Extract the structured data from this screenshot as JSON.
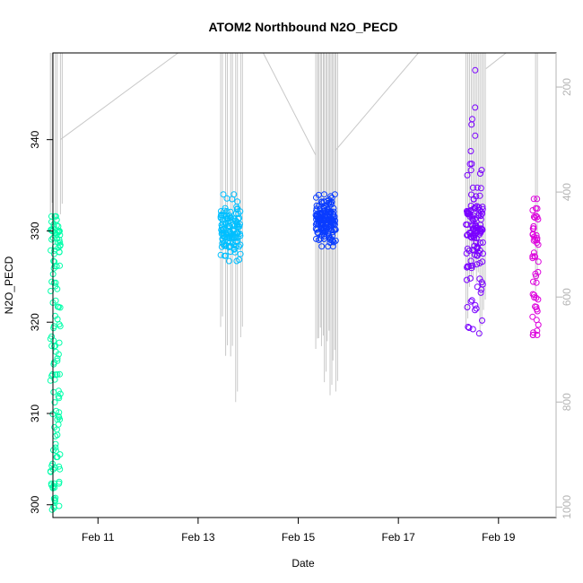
{
  "chart_data": {
    "type": "scatter",
    "title": "ATOM2 Northbound N2O_PECD",
    "xlabel": "Date",
    "ylabel": "N2O_PECD",
    "x_unit": "date (February)",
    "xlim": [
      10.1,
      20.15
    ],
    "ylim": [
      298.6,
      349.5
    ],
    "x_ticks": [
      {
        "value": 11,
        "label": "Feb 11"
      },
      {
        "value": 13,
        "label": "Feb 13"
      },
      {
        "value": 15,
        "label": "Feb 15"
      },
      {
        "value": 17,
        "label": "Feb 17"
      },
      {
        "value": 19,
        "label": "Feb 19"
      }
    ],
    "y_ticks": [
      300,
      310,
      320,
      330,
      340
    ],
    "y2_axis": {
      "quantity": "pressure",
      "ticks": [
        200,
        400,
        600,
        800,
        1000
      ],
      "inverted": true,
      "range": [
        135,
        1020
      ]
    },
    "grid": false,
    "legend": "none",
    "marker": "open circle",
    "pressure_trace_color": "#c8c8c8",
    "flights": [
      {
        "id": "F1",
        "color": "#00ffaa",
        "x_range": [
          10.05,
          10.25
        ],
        "n2o_range": [
          299.2,
          331.6
        ],
        "n2o_profile": [
          [
            300,
            8
          ],
          [
            302,
            9
          ],
          [
            304,
            8
          ],
          [
            306,
            7
          ],
          [
            308,
            5
          ],
          [
            310,
            7
          ],
          [
            312,
            6
          ],
          [
            314,
            8
          ],
          [
            316,
            6
          ],
          [
            318,
            7
          ],
          [
            320,
            6
          ],
          [
            322,
            5
          ],
          [
            324,
            6
          ],
          [
            326,
            7
          ],
          [
            328,
            10
          ],
          [
            329.5,
            14
          ],
          [
            330.5,
            10
          ],
          [
            331.5,
            4
          ]
        ],
        "pressure_min": 135,
        "pressure_max": 500,
        "profile_count": 3
      },
      {
        "id": "F2",
        "color": "#00bfff",
        "x_range": [
          13.45,
          13.85
        ],
        "n2o_range": [
          326.7,
          334.0
        ],
        "n2o_profile": [
          [
            327,
            5
          ],
          [
            328,
            12
          ],
          [
            329,
            28
          ],
          [
            330,
            34
          ],
          [
            331,
            26
          ],
          [
            332,
            14
          ],
          [
            333,
            6
          ],
          [
            334,
            2
          ]
        ],
        "pressure_min": 135,
        "pressure_max": 830,
        "profile_count": 5
      },
      {
        "id": "F3",
        "color": "#0a3cff",
        "x_range": [
          15.35,
          15.75
        ],
        "n2o_range": [
          328.3,
          334.0
        ],
        "n2o_profile": [
          [
            328.5,
            8
          ],
          [
            329.5,
            26
          ],
          [
            330.5,
            42
          ],
          [
            331.5,
            44
          ],
          [
            332.5,
            30
          ],
          [
            333.5,
            12
          ]
        ],
        "pressure_min": 135,
        "pressure_max": 820,
        "profile_count": 8
      },
      {
        "id": "F4",
        "color": "#7a00ff",
        "x_range": [
          18.35,
          18.7
        ],
        "n2o_range": [
          318.4,
          347.9
        ],
        "n2o_profile": [
          [
            318.5,
            1
          ],
          [
            320,
            4
          ],
          [
            322,
            6
          ],
          [
            324,
            8
          ],
          [
            326,
            10
          ],
          [
            328,
            20
          ],
          [
            330,
            40
          ],
          [
            332,
            30
          ],
          [
            334,
            8
          ],
          [
            336,
            4
          ],
          [
            338,
            3
          ],
          [
            341,
            2
          ],
          [
            343,
            2
          ],
          [
            348,
            1
          ]
        ],
        "pressure_min": 135,
        "pressure_max": 690,
        "profile_count": 6
      },
      {
        "id": "F5",
        "color": "#dd00dd",
        "x_range": [
          19.68,
          19.8
        ],
        "n2o_range": [
          318.6,
          333.5
        ],
        "n2o_profile": [
          [
            319,
            6
          ],
          [
            321,
            6
          ],
          [
            323,
            5
          ],
          [
            325,
            5
          ],
          [
            327,
            6
          ],
          [
            329,
            10
          ],
          [
            331,
            8
          ],
          [
            333,
            5
          ]
        ],
        "pressure_min": 135,
        "pressure_max": 690,
        "profile_count": 1
      }
    ],
    "pressure_connectors": [
      {
        "from": [
          10.25,
          300
        ],
        "to": [
          12.6,
          135
        ]
      },
      {
        "from": [
          14.3,
          135
        ],
        "to": [
          15.35,
          330
        ]
      },
      {
        "from": [
          15.75,
          320
        ],
        "to": [
          17.4,
          135
        ]
      },
      {
        "from": [
          18.7,
          135
        ],
        "to": [
          18.75,
          135
        ]
      },
      {
        "from": [
          18.75,
          165
        ],
        "to": [
          19.15,
          135
        ]
      }
    ]
  }
}
